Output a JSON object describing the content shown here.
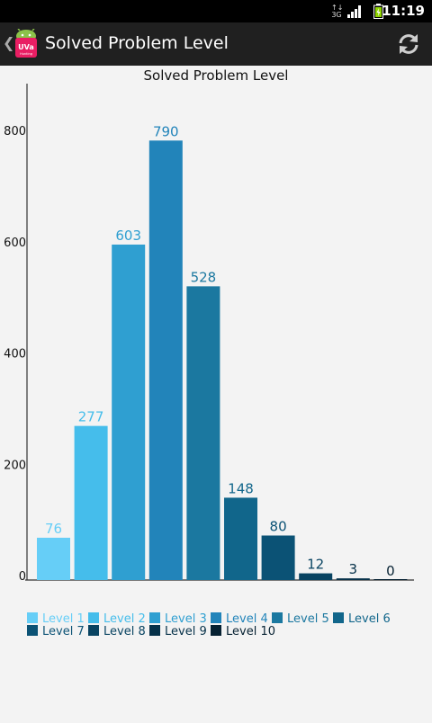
{
  "status_bar": {
    "time": "11:19",
    "network": "3G"
  },
  "action_bar": {
    "title": "Solved Problem Level",
    "logo_text": "UVa",
    "logo_subtext": "Hunting"
  },
  "chart_data": {
    "type": "bar",
    "title": "Solved Problem Level",
    "categories": [
      "Level 1",
      "Level 2",
      "Level 3",
      "Level 4",
      "Level 5",
      "Level 6",
      "Level 7",
      "Level 8",
      "Level 9",
      "Level 10"
    ],
    "values": [
      76,
      277,
      603,
      790,
      528,
      148,
      80,
      12,
      3,
      0
    ],
    "colors": [
      "#66cef7",
      "#45bdeb",
      "#2f9fd1",
      "#2284ba",
      "#1b78a0",
      "#11668b",
      "#0b5275",
      "#084361",
      "#063149",
      "#062132"
    ],
    "yticks": [
      0,
      200,
      400,
      600,
      800
    ],
    "ylim": [
      0,
      860
    ],
    "legend_position": "bottom-left",
    "xlabel": "",
    "ylabel": ""
  }
}
